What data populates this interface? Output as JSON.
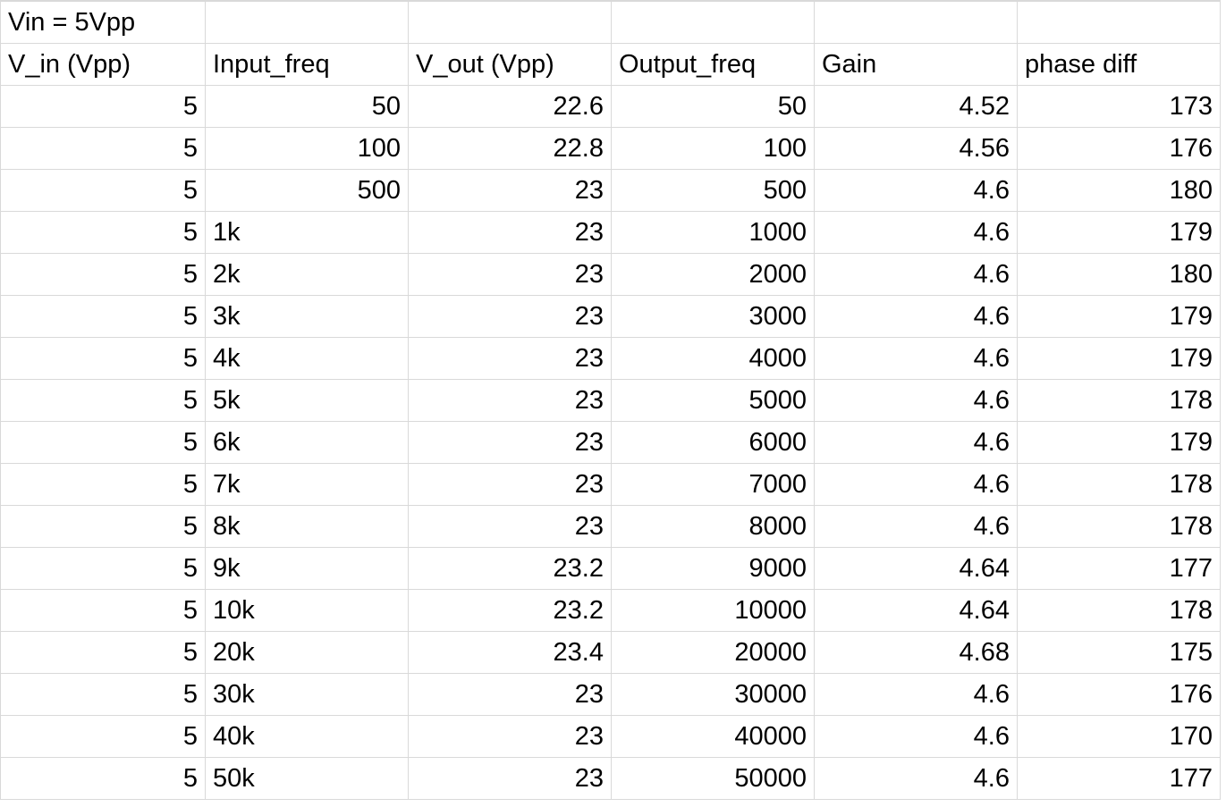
{
  "sheet": {
    "title": "Vin = 5Vpp",
    "headers": [
      "V_in (Vpp)",
      "Input_freq",
      "V_out (Vpp)",
      "Output_freq",
      "Gain",
      "phase diff"
    ],
    "rows": [
      [
        "5",
        "50",
        "22.6",
        "50",
        "4.52",
        "173"
      ],
      [
        "5",
        "100",
        "22.8",
        "100",
        "4.56",
        "176"
      ],
      [
        "5",
        "500",
        "23",
        "500",
        "4.6",
        "180"
      ],
      [
        "5",
        "1k",
        "23",
        "1000",
        "4.6",
        "179"
      ],
      [
        "5",
        "2k",
        "23",
        "2000",
        "4.6",
        "180"
      ],
      [
        "5",
        "3k",
        "23",
        "3000",
        "4.6",
        "179"
      ],
      [
        "5",
        "4k",
        "23",
        "4000",
        "4.6",
        "179"
      ],
      [
        "5",
        "5k",
        "23",
        "5000",
        "4.6",
        "178"
      ],
      [
        "5",
        "6k",
        "23",
        "6000",
        "4.6",
        "179"
      ],
      [
        "5",
        "7k",
        "23",
        "7000",
        "4.6",
        "178"
      ],
      [
        "5",
        "8k",
        "23",
        "8000",
        "4.6",
        "178"
      ],
      [
        "5",
        "9k",
        "23.2",
        "9000",
        "4.64",
        "177"
      ],
      [
        "5",
        "10k",
        "23.2",
        "10000",
        "4.64",
        "178"
      ],
      [
        "5",
        "20k",
        "23.4",
        "20000",
        "4.68",
        "175"
      ],
      [
        "5",
        "30k",
        "23",
        "30000",
        "4.6",
        "176"
      ],
      [
        "5",
        "40k",
        "23",
        "40000",
        "4.6",
        "170"
      ],
      [
        "5",
        "50k",
        "23",
        "50000",
        "4.6",
        "177"
      ]
    ]
  }
}
